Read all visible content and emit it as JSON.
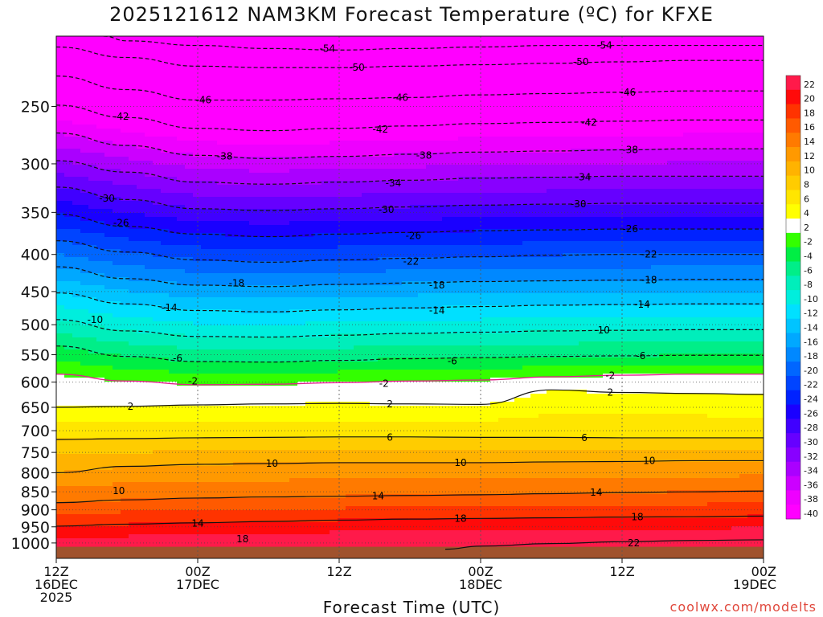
{
  "title": "2025121612 NAM3KM Forecast Temperature (ºC) for KFXE",
  "credit": "coolwx.com/modelts",
  "chart_data": {
    "type": "heatmap",
    "title": "2025121612 NAM3KM Forecast Temperature (ºC) for KFXE",
    "xlabel": "Forecast Time (UTC)",
    "ylabel": "",
    "x_unit": "forecast hour",
    "xlim": [
      0,
      60
    ],
    "ylim_pressure_hPa": [
      1050,
      200
    ],
    "y_scale": "log-pressure",
    "grid": true,
    "x_ticks": [
      {
        "hour": 0,
        "lines": [
          "12Z",
          "16DEC",
          "2025"
        ]
      },
      {
        "hour": 12,
        "lines": [
          "00Z",
          "17DEC"
        ]
      },
      {
        "hour": 24,
        "lines": [
          "12Z"
        ]
      },
      {
        "hour": 36,
        "lines": [
          "00Z",
          "18DEC"
        ]
      },
      {
        "hour": 48,
        "lines": [
          "12Z"
        ]
      },
      {
        "hour": 60,
        "lines": [
          "00Z",
          "19DEC"
        ]
      }
    ],
    "y_ticks": [
      250,
      300,
      350,
      400,
      450,
      500,
      550,
      600,
      650,
      700,
      750,
      800,
      850,
      900,
      950,
      1000
    ],
    "colorbar": {
      "labels": [
        "22",
        "20",
        "18",
        "16",
        "14",
        "12",
        "10",
        "8",
        "6",
        "4",
        "2",
        "-2",
        "-4",
        "-6",
        "-8",
        "-10",
        "-12",
        "-14",
        "-16",
        "-18",
        "-20",
        "-22",
        "-24",
        "-26",
        "-28",
        "-30",
        "-32",
        "-34",
        "-36",
        "-38",
        "-40"
      ],
      "bands": [
        {
          "from": 20,
          "to": 22,
          "color": "#ff1a4a"
        },
        {
          "from": 18,
          "to": 20,
          "color": "#ff0a0a"
        },
        {
          "from": 16,
          "to": 18,
          "color": "#ff3300"
        },
        {
          "from": 14,
          "to": 16,
          "color": "#ff5a00"
        },
        {
          "from": 12,
          "to": 14,
          "color": "#ff7a00"
        },
        {
          "from": 10,
          "to": 12,
          "color": "#ff9900"
        },
        {
          "from": 8,
          "to": 10,
          "color": "#ffb300"
        },
        {
          "from": 6,
          "to": 8,
          "color": "#ffcc00"
        },
        {
          "from": 4,
          "to": 6,
          "color": "#ffe600"
        },
        {
          "from": 2,
          "to": 4,
          "color": "#ffff00"
        },
        {
          "from": -2,
          "to": 2,
          "color": "#ffffff"
        },
        {
          "from": -4,
          "to": -2,
          "color": "#33ff00"
        },
        {
          "from": -6,
          "to": -4,
          "color": "#00ee44"
        },
        {
          "from": -8,
          "to": -6,
          "color": "#00ee88"
        },
        {
          "from": -10,
          "to": -8,
          "color": "#00eebb"
        },
        {
          "from": -12,
          "to": -10,
          "color": "#00eedd"
        },
        {
          "from": -14,
          "to": -12,
          "color": "#00e0ff"
        },
        {
          "from": -16,
          "to": -14,
          "color": "#00c4ff"
        },
        {
          "from": -18,
          "to": -16,
          "color": "#00a8ff"
        },
        {
          "from": -20,
          "to": -18,
          "color": "#0088ff"
        },
        {
          "from": -22,
          "to": -20,
          "color": "#0066ff"
        },
        {
          "from": -24,
          "to": -22,
          "color": "#0044ff"
        },
        {
          "from": -26,
          "to": -24,
          "color": "#0022ff"
        },
        {
          "from": -28,
          "to": -26,
          "color": "#1a00ff"
        },
        {
          "from": -30,
          "to": -28,
          "color": "#4000ff"
        },
        {
          "from": -32,
          "to": -30,
          "color": "#6600ff"
        },
        {
          "from": -34,
          "to": -32,
          "color": "#8800ff"
        },
        {
          "from": -36,
          "to": -34,
          "color": "#aa00ff"
        },
        {
          "from": -38,
          "to": -36,
          "color": "#cc00ff"
        },
        {
          "from": -40,
          "to": -38,
          "color": "#ee00ff"
        },
        {
          "from": -60,
          "to": -40,
          "color": "#ff00ff"
        }
      ]
    },
    "profile_columns_hours": [
      0,
      6,
      12,
      18,
      24,
      30,
      36,
      42,
      48,
      54,
      60
    ],
    "isotherms": [
      {
        "temp": -54,
        "pressure_hPa": [
          null,
          203,
          206,
          208,
          209,
          208,
          207,
          206,
          206,
          206,
          206
        ]
      },
      {
        "temp": -50,
        "pressure_hPa": [
          207,
          214,
          220,
          221,
          221,
          220,
          219,
          218,
          217,
          216,
          216
        ]
      },
      {
        "temp": -46,
        "pressure_hPa": [
          227,
          237,
          245,
          245,
          244,
          243,
          241,
          240,
          239,
          238,
          238
        ]
      },
      {
        "temp": -42,
        "pressure_hPa": [
          249,
          259,
          268,
          270,
          268,
          266,
          264,
          263,
          262,
          261,
          261
        ]
      },
      {
        "temp": -38,
        "pressure_hPa": [
          272,
          283,
          292,
          295,
          293,
          291,
          289,
          288,
          287,
          286,
          286
        ]
      },
      {
        "temp": -34,
        "pressure_hPa": [
          297,
          308,
          318,
          320,
          318,
          316,
          314,
          313,
          312,
          312,
          312
        ]
      },
      {
        "temp": -30,
        "pressure_hPa": [
          323,
          336,
          346,
          348,
          346,
          344,
          342,
          341,
          340,
          340,
          340
        ]
      },
      {
        "temp": -26,
        "pressure_hPa": [
          352,
          366,
          375,
          378,
          375,
          373,
          371,
          370,
          369,
          369,
          369
        ]
      },
      {
        "temp": -22,
        "pressure_hPa": [
          383,
          397,
          407,
          410,
          407,
          405,
          403,
          401,
          400,
          400,
          400
        ]
      },
      {
        "temp": -18,
        "pressure_hPa": [
          416,
          432,
          441,
          443,
          440,
          438,
          436,
          435,
          434,
          433,
          433
        ]
      },
      {
        "temp": -14,
        "pressure_hPa": [
          452,
          468,
          478,
          480,
          477,
          474,
          472,
          470,
          469,
          468,
          468
        ]
      },
      {
        "temp": -10,
        "pressure_hPa": [
          492,
          510,
          519,
          520,
          517,
          514,
          512,
          510,
          509,
          508,
          508
        ]
      },
      {
        "temp": -6,
        "pressure_hPa": [
          535,
          553,
          562,
          563,
          560,
          557,
          555,
          553,
          552,
          551,
          551
        ]
      },
      {
        "temp": -2,
        "pressure_hPa": [
          585,
          598,
          605,
          604,
          601,
          598,
          596,
          590,
          587,
          585,
          585
        ]
      },
      {
        "temp": 2,
        "pressure_hPa": [
          650,
          648,
          645,
          643,
          642,
          643,
          644,
          615,
          620,
          622,
          624
        ]
      },
      {
        "temp": 6,
        "pressure_hPa": [
          720,
          718,
          716,
          715,
          714,
          714,
          715,
          715,
          716,
          716,
          716
        ]
      },
      {
        "temp": 10,
        "pressure_hPa": [
          800,
          784,
          779,
          777,
          775,
          775,
          775,
          773,
          772,
          770,
          770
        ]
      },
      {
        "temp": 14,
        "pressure_hPa": [
          880,
          872,
          867,
          864,
          862,
          860,
          858,
          855,
          852,
          850,
          848
        ]
      },
      {
        "temp": 18,
        "pressure_hPa": [
          948,
          942,
          938,
          934,
          930,
          927,
          925,
          923,
          921,
          920,
          918
        ]
      },
      {
        "temp": 22,
        "pressure_hPa": [
          null,
          null,
          null,
          null,
          null,
          null,
          1010,
          1002,
          996,
          992,
          990
        ]
      }
    ],
    "contour_labels": [
      {
        "text": "-54",
        "hour": 23,
        "pressure_hPa": 208
      },
      {
        "text": "-54",
        "hour": 46.5,
        "pressure_hPa": 206
      },
      {
        "text": "-50",
        "hour": 25.5,
        "pressure_hPa": 221
      },
      {
        "text": "-50",
        "hour": 44.5,
        "pressure_hPa": 217
      },
      {
        "text": "-46",
        "hour": 12.5,
        "pressure_hPa": 245
      },
      {
        "text": "-46",
        "hour": 29.2,
        "pressure_hPa": 243
      },
      {
        "text": "-46",
        "hour": 48.5,
        "pressure_hPa": 239
      },
      {
        "text": "-42",
        "hour": 5.5,
        "pressure_hPa": 258
      },
      {
        "text": "-42",
        "hour": 27.5,
        "pressure_hPa": 269
      },
      {
        "text": "-42",
        "hour": 45.2,
        "pressure_hPa": 263
      },
      {
        "text": "-38",
        "hour": 14.3,
        "pressure_hPa": 293
      },
      {
        "text": "-38",
        "hour": 31.2,
        "pressure_hPa": 292
      },
      {
        "text": "-38",
        "hour": 48.7,
        "pressure_hPa": 287
      },
      {
        "text": "-34",
        "hour": 28.6,
        "pressure_hPa": 319
      },
      {
        "text": "-34",
        "hour": 44.7,
        "pressure_hPa": 313
      },
      {
        "text": "-30",
        "hour": 4.3,
        "pressure_hPa": 335
      },
      {
        "text": "-30",
        "hour": 28.0,
        "pressure_hPa": 347
      },
      {
        "text": "-30",
        "hour": 44.3,
        "pressure_hPa": 341
      },
      {
        "text": "-26",
        "hour": 5.5,
        "pressure_hPa": 362
      },
      {
        "text": "-26",
        "hour": 30.3,
        "pressure_hPa": 377
      },
      {
        "text": "-26",
        "hour": 48.7,
        "pressure_hPa": 369
      },
      {
        "text": "-22",
        "hour": 30.1,
        "pressure_hPa": 409
      },
      {
        "text": "-22",
        "hour": 50.3,
        "pressure_hPa": 400
      },
      {
        "text": "-18",
        "hour": 15.3,
        "pressure_hPa": 438
      },
      {
        "text": "-18",
        "hour": 32.3,
        "pressure_hPa": 441
      },
      {
        "text": "-18",
        "hour": 50.3,
        "pressure_hPa": 434
      },
      {
        "text": "-14",
        "hour": 9.6,
        "pressure_hPa": 474
      },
      {
        "text": "-14",
        "hour": 32.3,
        "pressure_hPa": 478
      },
      {
        "text": "-14",
        "hour": 49.7,
        "pressure_hPa": 469
      },
      {
        "text": "-10",
        "hour": 3.3,
        "pressure_hPa": 492
      },
      {
        "text": "-10",
        "hour": 46.3,
        "pressure_hPa": 509
      },
      {
        "text": "-6",
        "hour": 10.3,
        "pressure_hPa": 556
      },
      {
        "text": "-6",
        "hour": 33.6,
        "pressure_hPa": 561
      },
      {
        "text": "-6",
        "hour": 49.6,
        "pressure_hPa": 552
      },
      {
        "text": "-2",
        "hour": 11.6,
        "pressure_hPa": 598
      },
      {
        "text": "-2",
        "hour": 27.8,
        "pressure_hPa": 603
      },
      {
        "text": "-2",
        "hour": 47.0,
        "pressure_hPa": 588
      },
      {
        "text": "2",
        "hour": 6.3,
        "pressure_hPa": 648
      },
      {
        "text": "2",
        "hour": 28.3,
        "pressure_hPa": 643
      },
      {
        "text": "2",
        "hour": 47.0,
        "pressure_hPa": 620
      },
      {
        "text": "6",
        "hour": 28.3,
        "pressure_hPa": 715
      },
      {
        "text": "6",
        "hour": 44.8,
        "pressure_hPa": 716
      },
      {
        "text": "10",
        "hour": 18.3,
        "pressure_hPa": 777
      },
      {
        "text": "10",
        "hour": 34.3,
        "pressure_hPa": 775
      },
      {
        "text": "10",
        "hour": 50.3,
        "pressure_hPa": 770
      },
      {
        "text": "10",
        "hour": 5.3,
        "pressure_hPa": 848
      },
      {
        "text": "14",
        "hour": 27.3,
        "pressure_hPa": 862
      },
      {
        "text": "14",
        "hour": 45.8,
        "pressure_hPa": 852
      },
      {
        "text": "14",
        "hour": 12.0,
        "pressure_hPa": 940
      },
      {
        "text": "18",
        "hour": 34.3,
        "pressure_hPa": 925
      },
      {
        "text": "18",
        "hour": 49.3,
        "pressure_hPa": 921
      },
      {
        "text": "18",
        "hour": 15.8,
        "pressure_hPa": 988
      },
      {
        "text": "22",
        "hour": 49.0,
        "pressure_hPa": 1000
      }
    ]
  }
}
